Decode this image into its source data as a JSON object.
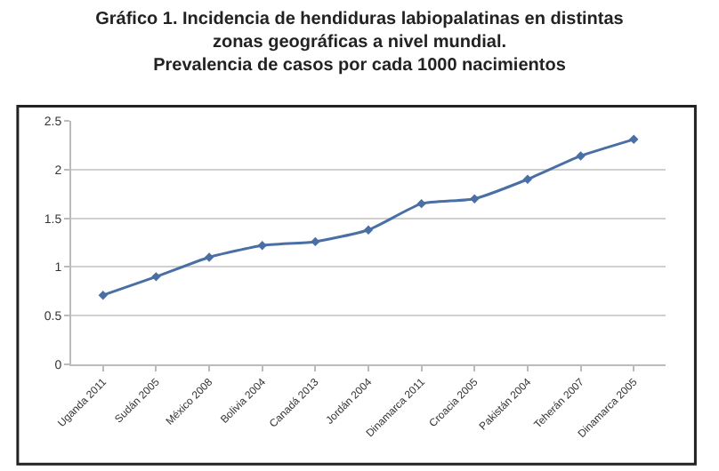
{
  "chart_data": {
    "type": "line",
    "title": "Gráfico 1. Incidencia de hendiduras labiopalatinas en distintas\nzonas geográficas a nivel mundial.\nPrevalencia de casos por cada 1000 nacimientos",
    "categories": [
      "Uganda 2011",
      "Sudán 2005",
      "México 2008",
      "Bolivia 2004",
      "Canadá 2013",
      "Jordán 2004",
      "Dinamarca 2011",
      "Croacia 2005",
      "Pakistán 2004",
      "Teherán 2007",
      "Dinamarca 2005"
    ],
    "series": [
      {
        "color": "#4a6fa5",
        "values": [
          0.71,
          0.9,
          1.1,
          1.22,
          1.26,
          1.38,
          1.65,
          1.7,
          1.9,
          2.14,
          2.31
        ]
      }
    ],
    "ylim": [
      0,
      2.5
    ],
    "yticks": [
      0,
      0.5,
      1,
      1.5,
      2,
      2.5
    ],
    "grid": "y",
    "marker": "diamond",
    "line_style": "solid"
  }
}
